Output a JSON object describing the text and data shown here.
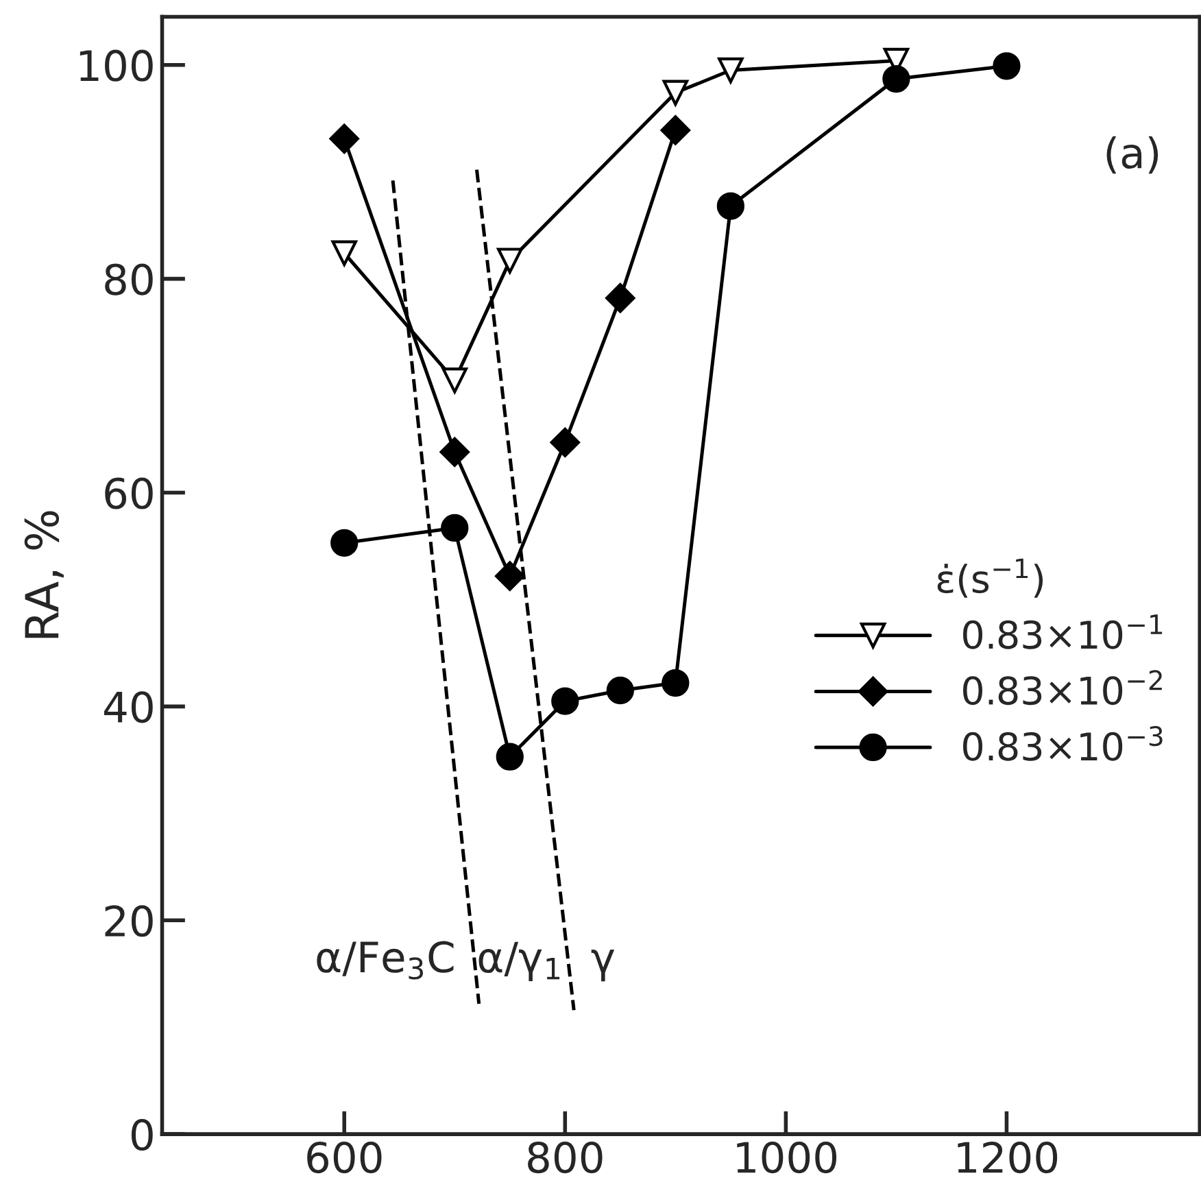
{
  "chart_data": {
    "type": "line",
    "ylabel": "RA, %",
    "legend_title": "ε̇(s$^{−1}$)",
    "xlim": [
      435,
      1375
    ],
    "ylim": [
      0,
      104.5
    ],
    "xticks": [
      600,
      800,
      1000,
      1200
    ],
    "yticks": [
      0,
      20,
      40,
      60,
      80,
      100
    ],
    "grid": false,
    "legend": "right",
    "line_style": "solid",
    "series": [
      {
        "name": "0.83×10$^{−1}$",
        "color": "#000000",
        "marker": "triangle",
        "x": [
          600,
          700,
          750,
          900,
          950,
          1100
        ],
        "values": [
          82.4,
          70.5,
          81.7,
          97.4,
          99.5,
          100.4
        ]
      },
      {
        "name": "0.83×10$^{−2}$",
        "color": "#000000",
        "marker": "diamond",
        "x": [
          600,
          700,
          750,
          800,
          850,
          900
        ],
        "values": [
          93.1,
          63.8,
          52.2,
          64.7,
          78.2,
          93.9
        ]
      },
      {
        "name": "0.83×10$^{−3}$",
        "color": "#000000",
        "marker": "circle",
        "x": [
          600,
          700,
          750,
          800,
          850,
          900,
          950,
          1100,
          1200
        ],
        "values": [
          55.3,
          56.7,
          35.3,
          40.5,
          41.5,
          42.2,
          86.8,
          98.7,
          99.9
        ]
      },
      {
        "color": "#000000",
        "marker": "none",
        "line_style": "dashed",
        "x": [
          644,
          722
        ],
        "values": [
          89.2,
          12.2
        ]
      },
      {
        "color": "#000000",
        "marker": "none",
        "line_style": "dashed",
        "x": [
          720,
          808
        ],
        "values": [
          90.2,
          11.6
        ]
      }
    ],
    "annotations": [
      "(a)",
      "α/Fe$_{3}$C",
      "α/γ$_{1}$",
      "γ"
    ]
  }
}
